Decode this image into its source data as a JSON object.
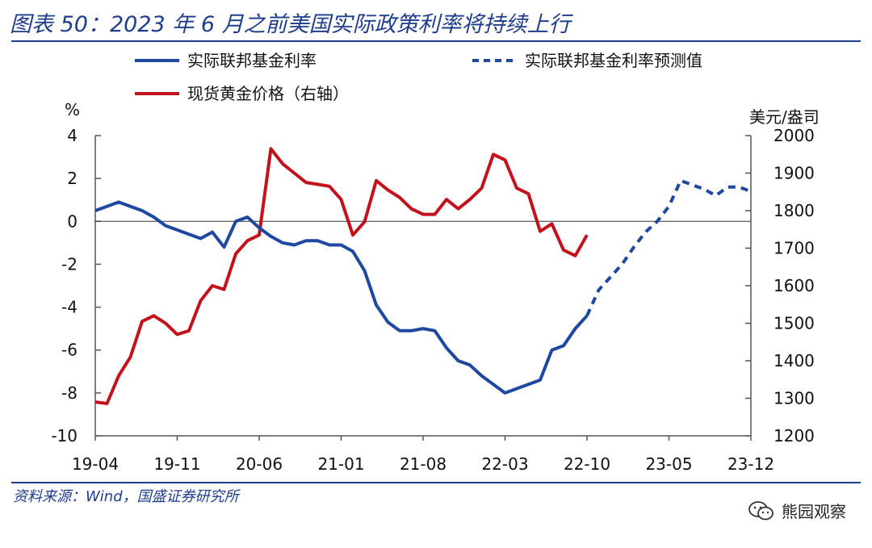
{
  "header": {
    "title": "图表 50：2023 年 6 月之前美国实际政策利率将持续上行"
  },
  "footer": {
    "source": "资料来源：Wind，国盛证券研究所",
    "watermark": "熊园观察",
    "watermark_icon": "wechat-icon"
  },
  "colors": {
    "blue": "#1f48a0",
    "red": "#c3121c",
    "rule": "#1f3d8a"
  },
  "chart_data": {
    "type": "line",
    "x_tick_labels": [
      "19-04",
      "19-11",
      "20-06",
      "21-01",
      "21-08",
      "22-03",
      "22-10",
      "23-05",
      "23-12"
    ],
    "left_axis": {
      "unit": "%",
      "range": [
        -10,
        4
      ],
      "ticks": [
        4,
        2,
        0,
        -2,
        -4,
        -6,
        -8,
        -10
      ]
    },
    "right_axis": {
      "unit": "美元/盎司",
      "range": [
        1200,
        2000
      ],
      "ticks": [
        2000,
        1900,
        1800,
        1700,
        1600,
        1500,
        1400,
        1300,
        1200
      ]
    },
    "legend": {
      "position": "top",
      "entries": [
        "实际联邦基金利率",
        "实际联邦基金利率预测值",
        "现货黄金价格（右轴）"
      ]
    },
    "x_months": [
      "2019-04",
      "2019-05",
      "2019-06",
      "2019-07",
      "2019-08",
      "2019-09",
      "2019-10",
      "2019-11",
      "2019-12",
      "2020-01",
      "2020-02",
      "2020-03",
      "2020-04",
      "2020-05",
      "2020-06",
      "2020-07",
      "2020-08",
      "2020-09",
      "2020-10",
      "2020-11",
      "2020-12",
      "2021-01",
      "2021-02",
      "2021-03",
      "2021-04",
      "2021-05",
      "2021-06",
      "2021-07",
      "2021-08",
      "2021-09",
      "2021-10",
      "2021-11",
      "2021-12",
      "2022-01",
      "2022-02",
      "2022-03",
      "2022-04",
      "2022-05",
      "2022-06",
      "2022-07",
      "2022-08",
      "2022-09",
      "2022-10",
      "2022-11",
      "2022-12",
      "2023-01",
      "2023-02",
      "2023-03",
      "2023-04",
      "2023-05",
      "2023-06",
      "2023-07",
      "2023-08",
      "2023-09",
      "2023-10",
      "2023-11",
      "2023-12"
    ],
    "series": [
      {
        "name": "实际联邦基金利率",
        "axis": "left",
        "style": "solid",
        "color": "#1f48a0",
        "values": [
          0.5,
          0.7,
          0.9,
          0.7,
          0.5,
          0.2,
          -0.2,
          -0.4,
          -0.6,
          -0.8,
          -0.5,
          -1.2,
          0.0,
          0.2,
          -0.3,
          -0.7,
          -1.0,
          -1.1,
          -0.9,
          -0.9,
          -1.1,
          -1.1,
          -1.4,
          -2.3,
          -3.9,
          -4.7,
          -5.1,
          -5.1,
          -5.0,
          -5.1,
          -5.9,
          -6.5,
          -6.7,
          -7.2,
          -7.6,
          -8.0,
          -7.8,
          -7.6,
          -7.4,
          -6.0,
          -5.8,
          -5.0,
          -4.4
        ]
      },
      {
        "name": "实际联邦基金利率预测值",
        "axis": "left",
        "style": "dashed",
        "color": "#1f48a0",
        "start_index": 42,
        "values": [
          -4.4,
          -3.2,
          -2.6,
          -2.0,
          -1.2,
          -0.5,
          0.0,
          0.7,
          1.9,
          1.7,
          1.5,
          1.2,
          1.6,
          1.6,
          1.4
        ]
      },
      {
        "name": "现货黄金价格（右轴）",
        "axis": "right",
        "style": "solid",
        "color": "#c3121c",
        "values": [
          1290,
          1286,
          1360,
          1410,
          1505,
          1520,
          1500,
          1470,
          1480,
          1560,
          1600,
          1590,
          1685,
          1720,
          1735,
          1965,
          1925,
          1900,
          1875,
          1870,
          1865,
          1830,
          1735,
          1770,
          1880,
          1855,
          1835,
          1805,
          1790,
          1790,
          1830,
          1805,
          1830,
          1860,
          1950,
          1935,
          1860,
          1845,
          1745,
          1765,
          1695,
          1680,
          1735
        ]
      }
    ]
  }
}
